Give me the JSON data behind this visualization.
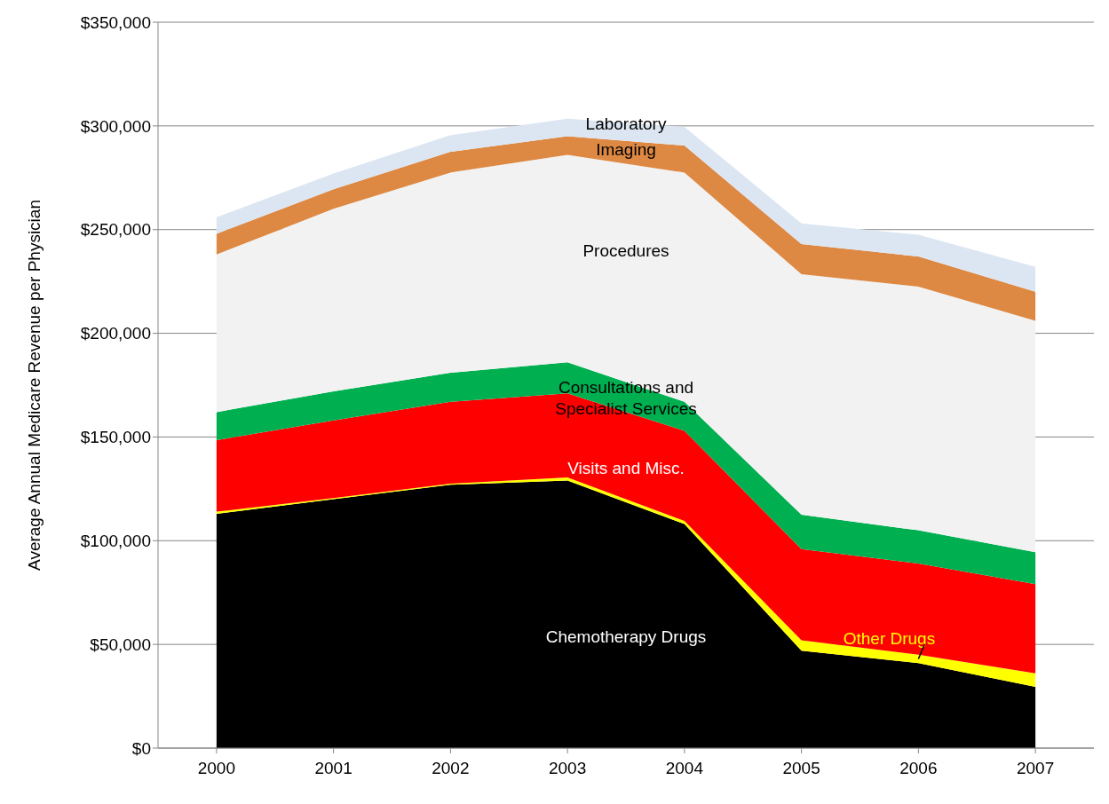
{
  "chart_data": {
    "type": "area",
    "stacked": true,
    "ylabel": "Average Annual Medicare Revenue per Physician",
    "categories": [
      "2000",
      "2001",
      "2002",
      "2003",
      "2004",
      "2005",
      "2006",
      "2007"
    ],
    "series": [
      {
        "name": "Chemotherapy Drugs",
        "color": "#000000",
        "values": [
          113000,
          120000,
          127000,
          129000,
          108000,
          47000,
          41000,
          29500
        ]
      },
      {
        "name": "Other Drugs",
        "color": "#ffff00",
        "values": [
          1000,
          500,
          500,
          1500,
          1500,
          5000,
          4000,
          6500
        ]
      },
      {
        "name": "Visits and Misc.",
        "color": "#ff0000",
        "values": [
          34500,
          37500,
          39500,
          40500,
          43500,
          44000,
          44000,
          43000
        ]
      },
      {
        "name": "Consultations and Specialist Services",
        "color": "#00b050",
        "values": [
          13500,
          14000,
          14000,
          15000,
          14000,
          16500,
          16000,
          15500
        ]
      },
      {
        "name": "Procedures",
        "color": "#f2f2f2",
        "values": [
          76000,
          88000,
          96500,
          100000,
          110500,
          116000,
          117500,
          111500
        ]
      },
      {
        "name": "Imaging",
        "color": "#dd8843",
        "values": [
          10000,
          9500,
          10000,
          9000,
          13000,
          14500,
          14500,
          14000
        ]
      },
      {
        "name": "Laboratory",
        "color": "#dce6f2",
        "values": [
          8000,
          7500,
          8000,
          8500,
          9000,
          10000,
          10500,
          12000
        ]
      }
    ],
    "ylim": [
      0,
      350000
    ],
    "yticks": [
      {
        "value": 0,
        "label": "$0"
      },
      {
        "value": 50000,
        "label": "$50,000"
      },
      {
        "value": 100000,
        "label": "$100,000"
      },
      {
        "value": 150000,
        "label": "$150,000"
      },
      {
        "value": 200000,
        "label": "$200,000"
      },
      {
        "value": 250000,
        "label": "$250,000"
      },
      {
        "value": 300000,
        "label": "$300,000"
      },
      {
        "value": 350000,
        "label": "$350,000"
      }
    ],
    "grid": "y"
  }
}
